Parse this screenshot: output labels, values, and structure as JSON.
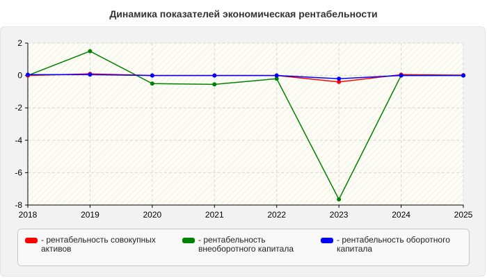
{
  "chart_data": {
    "type": "line",
    "title": "Динамика показателей экономическая рентабельности",
    "xlabel": "",
    "ylabel": "",
    "x": [
      2018,
      2019,
      2020,
      2021,
      2022,
      2023,
      2024,
      2025
    ],
    "xlim": [
      2018,
      2025
    ],
    "ylim": [
      -8,
      2
    ],
    "yticks": [
      2,
      0,
      -2,
      -4,
      -6,
      -8
    ],
    "grid": true,
    "legend_position": "bottom",
    "series": [
      {
        "name": "- рентабельность совокупных активов",
        "color": "#ff0000",
        "values": [
          0.0,
          0.1,
          0.0,
          0.0,
          0.0,
          -0.4,
          0.05,
          0.02
        ]
      },
      {
        "name": "- рентабельность внеоборотного капитала",
        "color": "#008000",
        "values": [
          0.0,
          1.5,
          -0.5,
          -0.55,
          -0.2,
          -7.65,
          0.0,
          0.0
        ]
      },
      {
        "name": "- рентабельность оборотного капитала",
        "color": "#0000ff",
        "values": [
          0.05,
          0.05,
          0.0,
          0.0,
          0.0,
          -0.2,
          0.0,
          0.0
        ]
      }
    ]
  },
  "legend": [
    {
      "line1": "- рентабельность совокупных",
      "line2": "активов",
      "color": "#ff0000"
    },
    {
      "line1": "- рентабельность",
      "line2": "внеоборотного капитала",
      "color": "#008000"
    },
    {
      "line1": "- рентабельность оборотного",
      "line2": "капитала",
      "color": "#0000ff"
    }
  ]
}
